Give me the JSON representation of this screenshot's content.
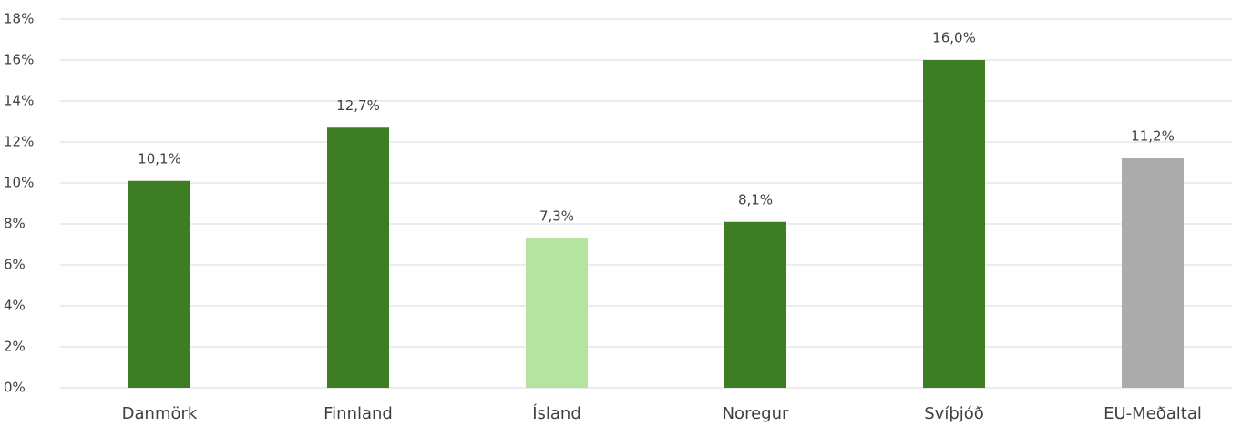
{
  "chart_data": {
    "type": "bar",
    "categories": [
      "Danmörk",
      "Finnland",
      "Ísland",
      "Noregur",
      "Svíþjóð",
      "EU-Meðaltal"
    ],
    "values": [
      10.1,
      12.7,
      7.3,
      8.1,
      16.0,
      11.2
    ],
    "value_labels": [
      "10,1%",
      "12,7%",
      "7,3%",
      "8,1%",
      "16,0%",
      "11,2%"
    ],
    "colors": [
      "#3d7d23",
      "#3d7d23",
      "#b5e3a0",
      "#3d7d23",
      "#3d7d23",
      "#ababab"
    ],
    "ylim": [
      0,
      18
    ],
    "yticks": [
      {
        "value": 0,
        "label": "0%"
      },
      {
        "value": 2,
        "label": "2%"
      },
      {
        "value": 4,
        "label": "4%"
      },
      {
        "value": 6,
        "label": "6%"
      },
      {
        "value": 8,
        "label": "8%"
      },
      {
        "value": 10,
        "label": "10%"
      },
      {
        "value": 12,
        "label": "12%"
      },
      {
        "value": 14,
        "label": "14%"
      },
      {
        "value": 16,
        "label": "16%"
      },
      {
        "value": 18,
        "label": "18%"
      }
    ],
    "grid": true
  }
}
